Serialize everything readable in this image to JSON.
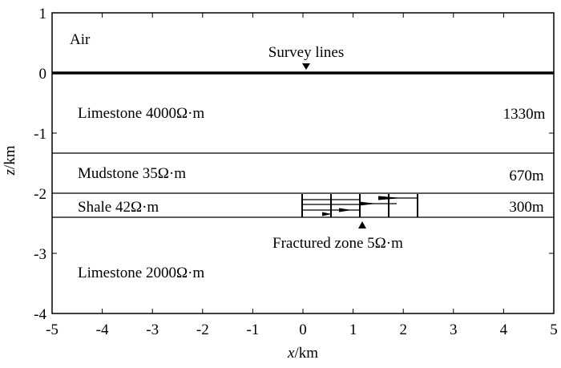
{
  "axes": {
    "xlabel_var": "x",
    "xlabel_unit": "/km",
    "ylabel_var": "z",
    "ylabel_unit": "/km",
    "xticks": [
      "-5",
      "-4",
      "-3",
      "-2",
      "-1",
      "0",
      "1",
      "2",
      "3",
      "4",
      "5"
    ],
    "yticks": [
      "1",
      "0",
      "-1",
      "-2",
      "-3",
      "-4"
    ],
    "xlim": [
      -5,
      5
    ],
    "ylim": [
      -4,
      1
    ]
  },
  "layers": [
    {
      "name": "Air",
      "top": 1,
      "bottom": 0
    },
    {
      "name": "Limestone  4000Ω·m",
      "top": 0,
      "bottom": -1.33,
      "thickness": "1330m"
    },
    {
      "name": "Mudstone  35Ω·m",
      "top": -1.33,
      "bottom": -2.0,
      "thickness": "670m"
    },
    {
      "name": "Shale  42Ω·m",
      "top": -2.0,
      "bottom": -2.3,
      "thickness": "300m"
    },
    {
      "name": "Limestone  2000Ω·m",
      "top": -2.3,
      "bottom": -4
    }
  ],
  "survey_label": "Survey lines",
  "fracture": {
    "label": "Fractured zone  5Ω·m",
    "x_start": 0,
    "x_end": 2.3,
    "cells": 4
  }
}
